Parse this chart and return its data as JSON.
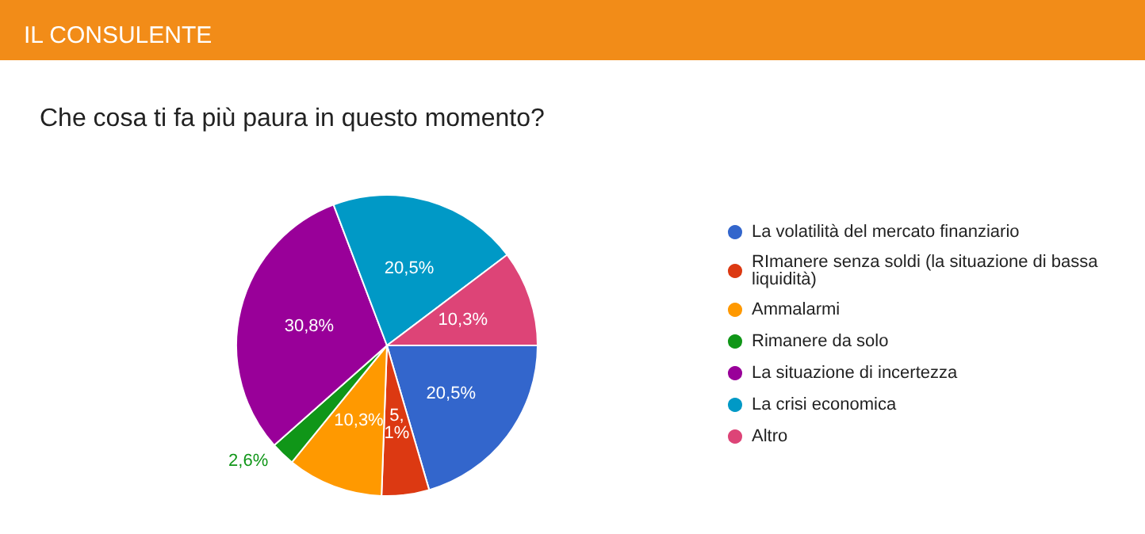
{
  "chart_data": {
    "type": "pie",
    "title": "IL CONSULENTE",
    "subtitle": "Che cosa ti fa più paura in questo momento?",
    "categories": [
      "La volatilità del mercato finanziario",
      "RImanere senza soldi (la situazione di bassa liquidità)",
      "Ammalarmi",
      "Rimanere da solo",
      "La situazione di incertezza",
      "La crisi economica",
      "Altro"
    ],
    "values": [
      20.5,
      5.1,
      10.3,
      2.6,
      30.8,
      20.5,
      10.3
    ],
    "value_labels": [
      "20,5%",
      "5,1%",
      "10,3%",
      "2,6%",
      "30,8%",
      "20,5%",
      "10,3%"
    ],
    "colors": [
      "#3366cc",
      "#dc3912",
      "#ff9900",
      "#109618",
      "#990099",
      "#0099c6",
      "#dd4477"
    ],
    "legend": "right"
  }
}
